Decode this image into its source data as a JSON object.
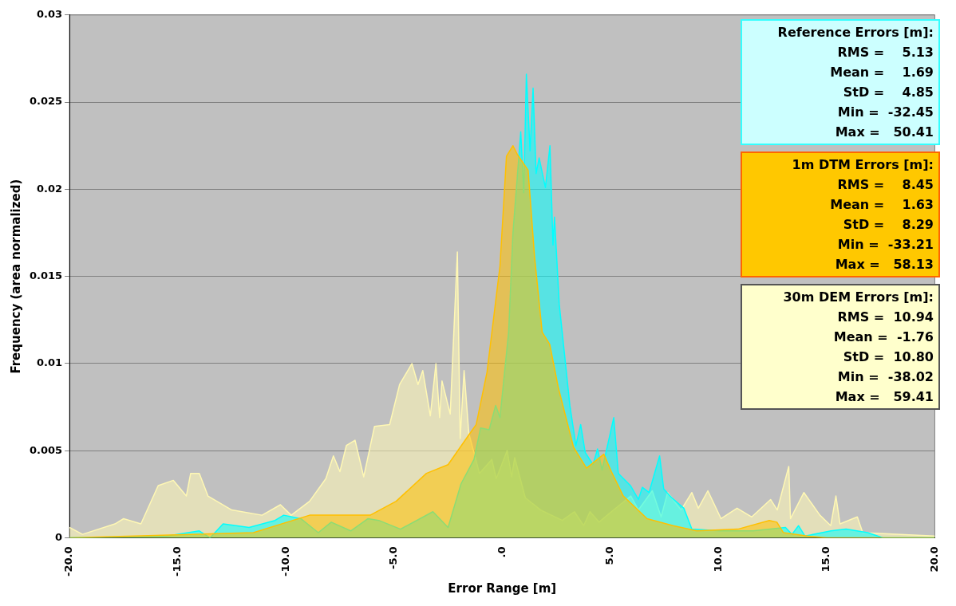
{
  "chart_data": {
    "type": "area",
    "xlabel": "Error Range [m]",
    "ylabel": "Frequency (area normalized)",
    "xlim": [
      -20,
      20
    ],
    "xticks": [
      {
        "value": -20,
        "label": "-20.0"
      },
      {
        "value": -15,
        "label": "-15.0"
      },
      {
        "value": -10,
        "label": "-10.0"
      },
      {
        "value": -5,
        "label": "-5.0"
      },
      {
        "value": 0,
        "label": ".0"
      },
      {
        "value": 5,
        "label": "5.0"
      },
      {
        "value": 10,
        "label": "10.0"
      },
      {
        "value": 15,
        "label": "15.0"
      },
      {
        "value": 20,
        "label": "20.0"
      }
    ],
    "ylim": [
      0,
      0.03
    ],
    "yticks": [
      0,
      0.005,
      0.01,
      0.015,
      0.02,
      0.025,
      0.03
    ],
    "grid": "y",
    "legend": false,
    "annotations": [
      "Reference Errors [m]:\nRMS =    5.13\nMean =    1.69\nStD =    4.85\nMin =  -32.45\nMax =   50.41",
      "1m DTM Errors [m]:\nRMS =    8.45\nMean =    1.63\nStD =    8.29\nMin =  -33.21\nMax =   58.13",
      "30m DEM Errors [m]:\nRMS =  10.94\nMean =  -1.76\nStD =  10.80\nMin =  -38.02\nMax =   59.41"
    ],
    "series": [
      {
        "color": "#ffc000",
        "x": [
          -20,
          -17,
          -11.5,
          -8.9,
          -6.1,
          -4.9,
          -3.5,
          -2.5,
          -1.6,
          -1.2,
          -0.7,
          -0.1,
          0.2,
          0.5,
          0.7,
          1.2,
          1.5,
          1.85,
          2.2,
          2.6,
          3.3,
          3.9,
          4.7,
          5.05,
          5.6,
          6.7,
          7.9,
          9,
          10.9,
          12.35,
          12.7,
          13,
          14.1,
          15,
          20
        ],
        "values": [
          0,
          0.0001,
          0.0003,
          0.0013,
          0.0013,
          0.0021,
          0.0037,
          0.0042,
          0.0058,
          0.0065,
          0.0095,
          0.0156,
          0.0219,
          0.0225,
          0.022,
          0.0211,
          0.0161,
          0.0118,
          0.0111,
          0.0086,
          0.0052,
          0.004,
          0.0048,
          0.0038,
          0.0024,
          0.0011,
          0.0007,
          0.0004,
          0.0005,
          0.001,
          0.0009,
          0.0003,
          0.0001,
          0,
          0
        ]
      },
      {
        "color": "#00ffff",
        "x": [
          -20,
          -15.5,
          -14,
          -13.5,
          -12.9,
          -11.7,
          -10.5,
          -10.1,
          -9.3,
          -8.5,
          -7.9,
          -7,
          -6.2,
          -5.7,
          -4.7,
          -3.2,
          -2.5,
          -1.9,
          -1.3,
          -1,
          -0.6,
          -0.3,
          -0.1,
          0.3,
          0.5,
          0.7,
          0.86,
          1,
          1.12,
          1.29,
          1.43,
          1.57,
          1.71,
          2,
          2.21,
          2.35,
          2.42,
          2.64,
          2.92,
          3.13,
          3.41,
          3.63,
          3.84,
          4.2,
          4.41,
          4.62,
          5.16,
          5.37,
          5.93,
          6.3,
          6.48,
          6.79,
          7.28,
          7.47,
          7.84,
          8.4,
          8.77,
          10.1,
          11.6,
          13.1,
          13.4,
          13.7,
          14,
          15.2,
          15.9,
          16.9,
          17.6,
          20
        ],
        "values": [
          0,
          0.0001,
          0.0004,
          0,
          0.0008,
          0.0006,
          0.001,
          0.0013,
          0.0011,
          0.0003,
          0.0009,
          0.0004,
          0.0011,
          0.001,
          0.0005,
          0.0015,
          0.0006,
          0.0031,
          0.0045,
          0.0063,
          0.0062,
          0.0076,
          0.0069,
          0.0118,
          0.0175,
          0.0207,
          0.0233,
          0.0198,
          0.0266,
          0.0222,
          0.0258,
          0.0209,
          0.0218,
          0.0201,
          0.0225,
          0.0168,
          0.0184,
          0.0134,
          0.0101,
          0.0076,
          0.0053,
          0.0065,
          0.0049,
          0.0042,
          0.0051,
          0.0039,
          0.0069,
          0.0037,
          0.003,
          0.0022,
          0.0029,
          0.0026,
          0.0047,
          0.0028,
          0.0023,
          0.0017,
          0.0005,
          0.0004,
          0.0004,
          0.0006,
          0.0002,
          0.0007,
          0.0001,
          0.0004,
          0.0005,
          0.0003,
          0,
          0
        ]
      },
      {
        "color": "#fff8b4",
        "x": [
          -20,
          -19.4,
          -17.9,
          -17.5,
          -16.7,
          -15.9,
          -15.2,
          -14.6,
          -14.4,
          -14,
          -13.6,
          -12.5,
          -11.1,
          -10.25,
          -9.75,
          -8.9,
          -8.15,
          -7.8,
          -7.5,
          -7.2,
          -6.8,
          -6.4,
          -5.9,
          -5.2,
          -4.74,
          -4.17,
          -3.89,
          -3.67,
          -3.32,
          -3.06,
          -2.89,
          -2.78,
          -2.4,
          -2.07,
          -1.94,
          -1.76,
          -1.54,
          -1.05,
          -0.48,
          -0.27,
          0.23,
          0.44,
          0.58,
          1.07,
          1.78,
          2.78,
          3.34,
          3.77,
          4.06,
          4.48,
          5.05,
          5.95,
          6.3,
          6.94,
          7.35,
          7.65,
          8.27,
          8.77,
          9.07,
          9.51,
          10.12,
          10.86,
          11.54,
          12.41,
          12.72,
          13.25,
          13.33,
          13.95,
          14.69,
          15.19,
          15.43,
          15.62,
          16.42,
          16.67,
          18.4,
          20
        ],
        "values": [
          0.0006,
          0.0002,
          0.0008,
          0.0011,
          0.0008,
          0.003,
          0.0033,
          0.0024,
          0.0037,
          0.0037,
          0.0024,
          0.0016,
          0.0013,
          0.0019,
          0.0013,
          0.0021,
          0.0034,
          0.0047,
          0.0038,
          0.0053,
          0.0056,
          0.0035,
          0.0064,
          0.0065,
          0.0088,
          0.01,
          0.0088,
          0.0096,
          0.007,
          0.01,
          0.0069,
          0.009,
          0.0071,
          0.0164,
          0.0057,
          0.0096,
          0.006,
          0.0037,
          0.0045,
          0.0034,
          0.005,
          0.0035,
          0.0046,
          0.0023,
          0.0016,
          0.001,
          0.0015,
          0.0007,
          0.0015,
          0.0009,
          0.0015,
          0.0024,
          0.0016,
          0.0027,
          0.0012,
          0.0026,
          0.0016,
          0.0026,
          0.0017,
          0.0027,
          0.0011,
          0.0017,
          0.0012,
          0.0022,
          0.0016,
          0.0041,
          0.0011,
          0.0026,
          0.0013,
          0.0007,
          0.0024,
          0.0008,
          0.0012,
          0.0003,
          0.0002,
          0.0001
        ]
      }
    ]
  }
}
